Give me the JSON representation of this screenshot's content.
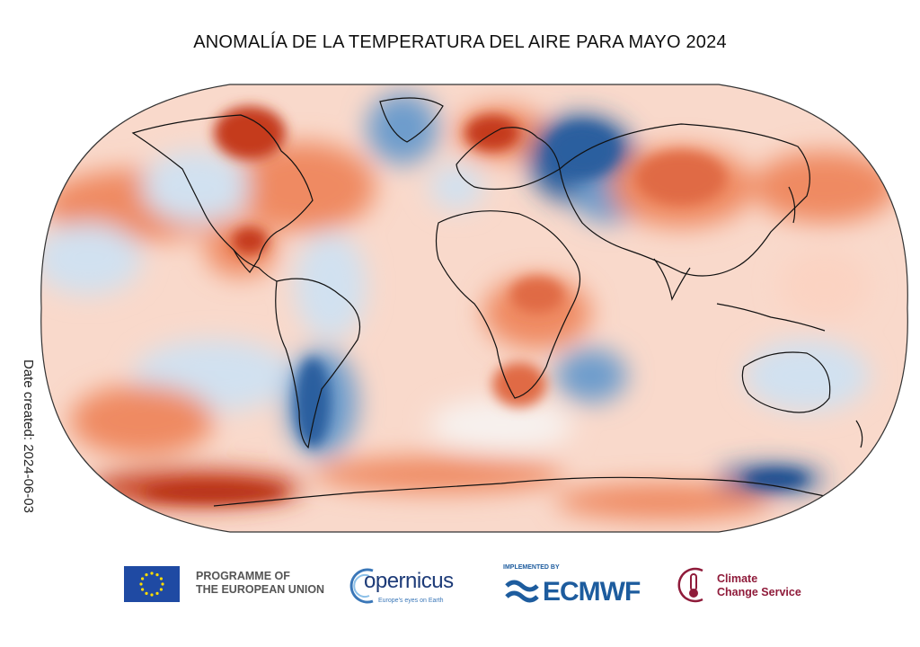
{
  "title": "ANOMALÍA DE LA TEMPERATURA DEL AIRE PARA MAYO 2024",
  "date_created_label": "Date created: 2024-06-03",
  "map": {
    "projection": "robinson",
    "colors": {
      "warm_strong": "#c53a1f",
      "warm": "#ef8a62",
      "warm_light": "#fbd3c2",
      "neutral": "#f7f1ee",
      "cool_light": "#d1e1f0",
      "cool": "#6d9ccc",
      "cool_strong": "#2c5e9f",
      "coastline": "#111111"
    }
  },
  "logos": {
    "eu": {
      "icon": "eu-flag-icon",
      "line1": "PROGRAMME OF",
      "line2": "THE EUROPEAN UNION"
    },
    "copernicus": {
      "name": "opernicus",
      "tagline": "Europe's eyes on Earth",
      "icon": "copernicus-ring-icon"
    },
    "ecmwf": {
      "implemented_by": "IMPLEMENTED BY",
      "name": "ECMWF",
      "icon": "ecmwf-waves-icon"
    },
    "c3s": {
      "line1": "Climate",
      "line2": "Change Service",
      "icon": "thermometer-icon"
    }
  }
}
